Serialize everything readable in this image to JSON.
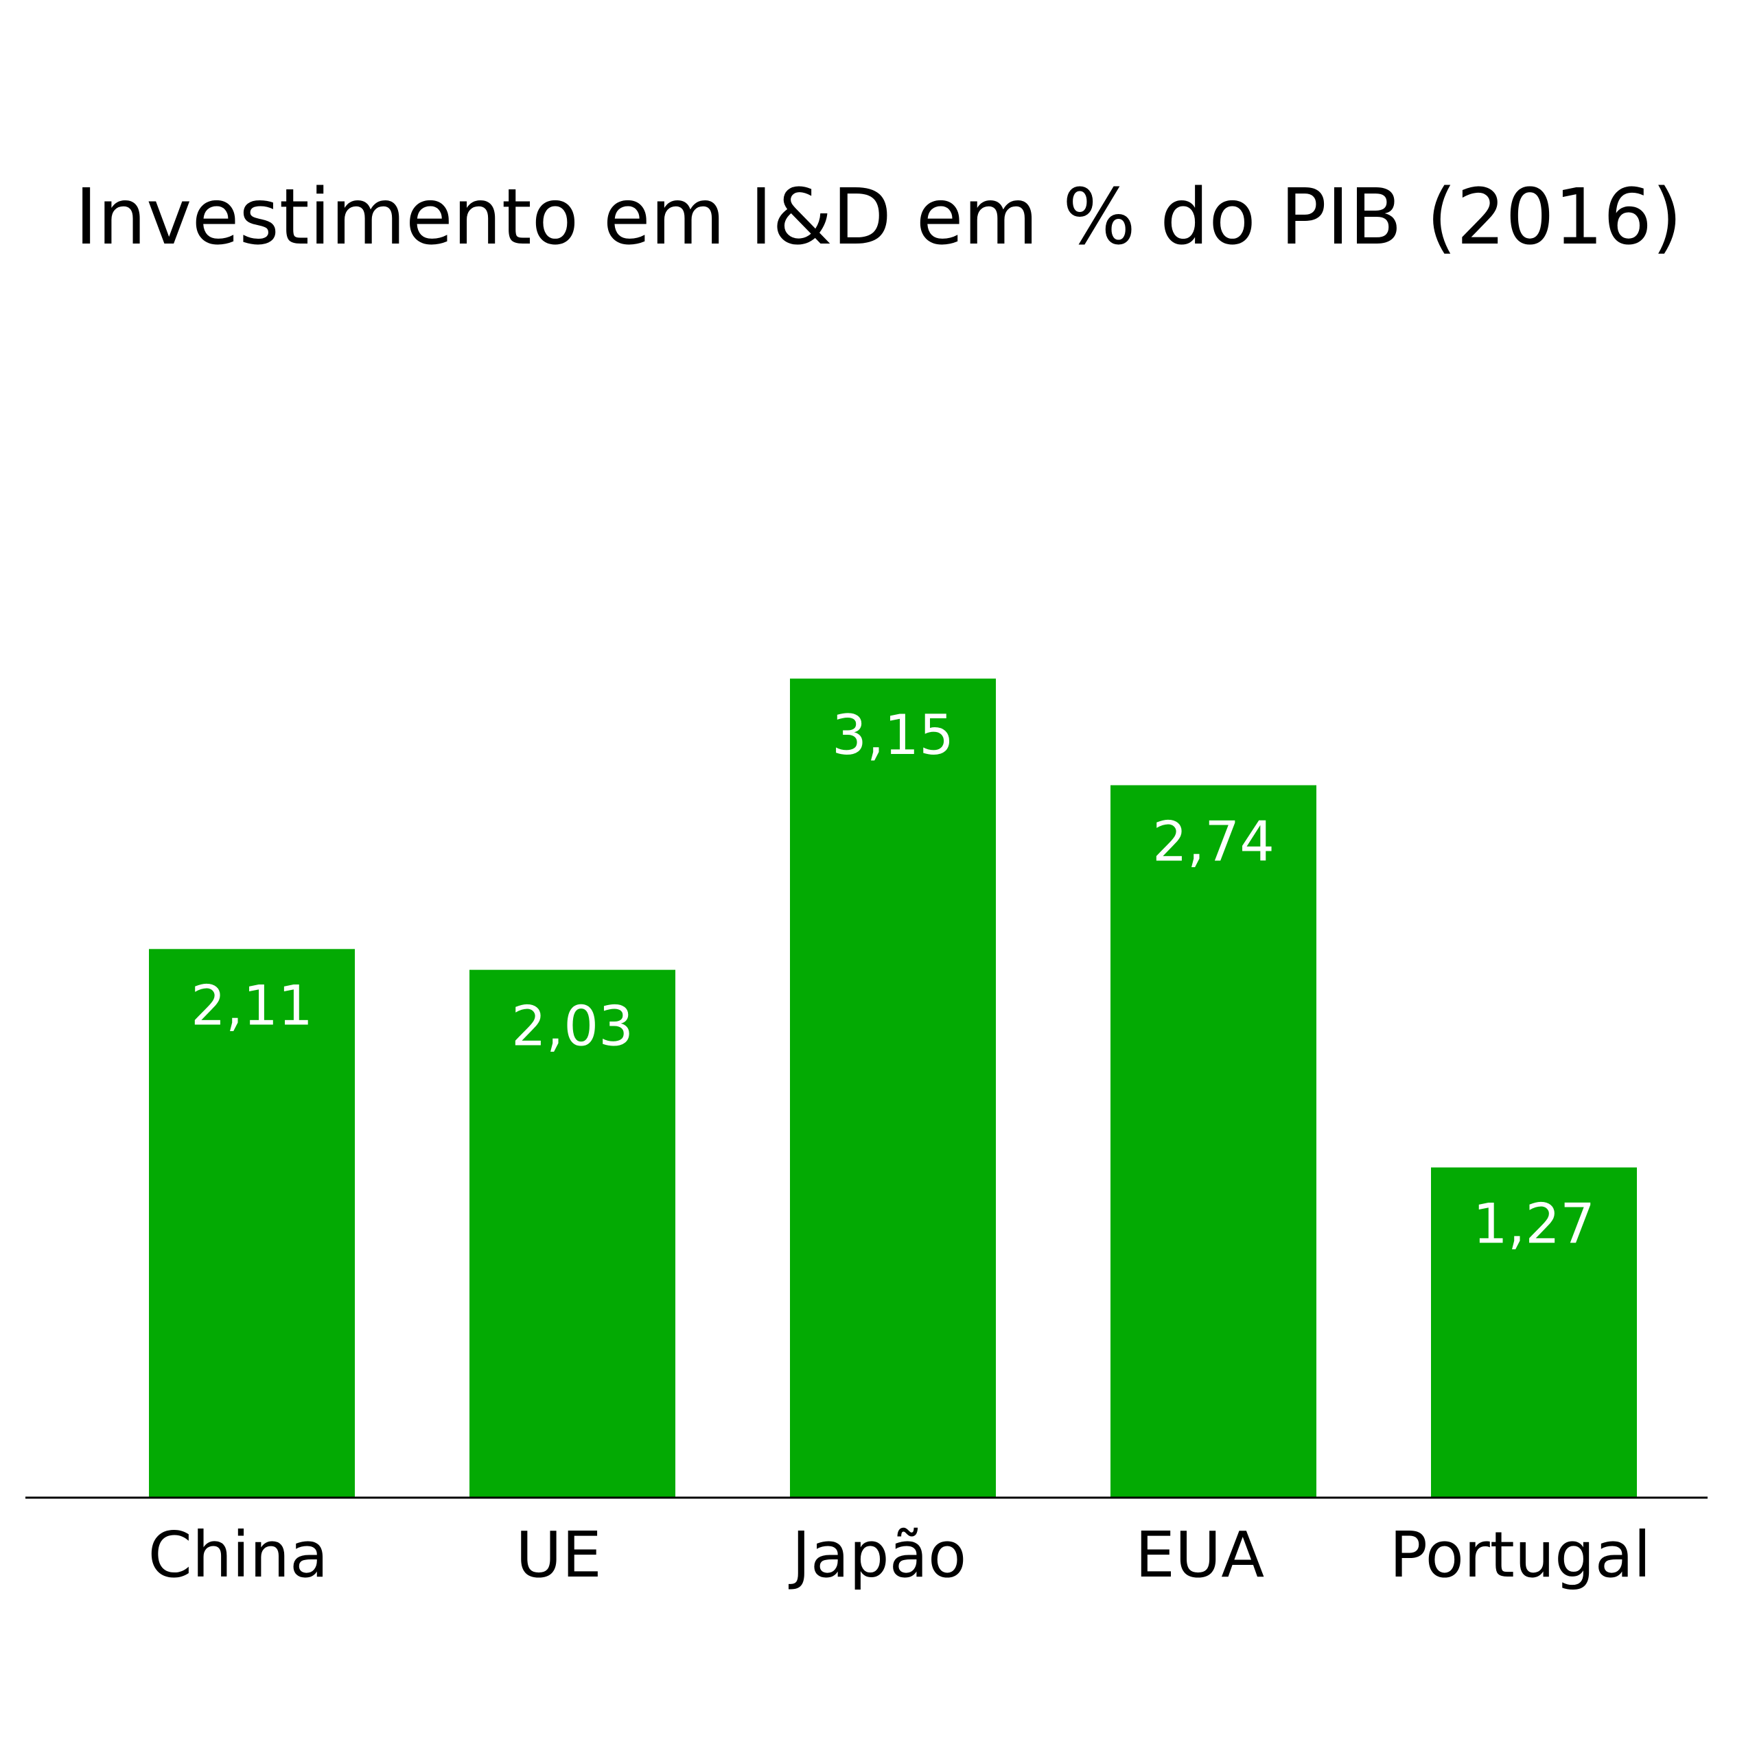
{
  "chart_data": {
    "type": "bar",
    "title": "Investimento em I&D em % do PIB (2016)",
    "categories": [
      "China",
      "UE",
      "Japão",
      "EUA",
      "Portugal"
    ],
    "values": [
      2.11,
      2.03,
      3.15,
      2.74,
      1.27
    ],
    "value_labels": [
      "2,11",
      "2,03",
      "3,15",
      "2,74",
      "1,27"
    ],
    "ylim": [
      0,
      5.5
    ],
    "grid": false,
    "legend": "none",
    "colors": {
      "bar": "#03AA03",
      "value_label": "#FFFFFF",
      "axis": "#000000",
      "text": "#000000",
      "background": "#FFFFFF"
    }
  }
}
